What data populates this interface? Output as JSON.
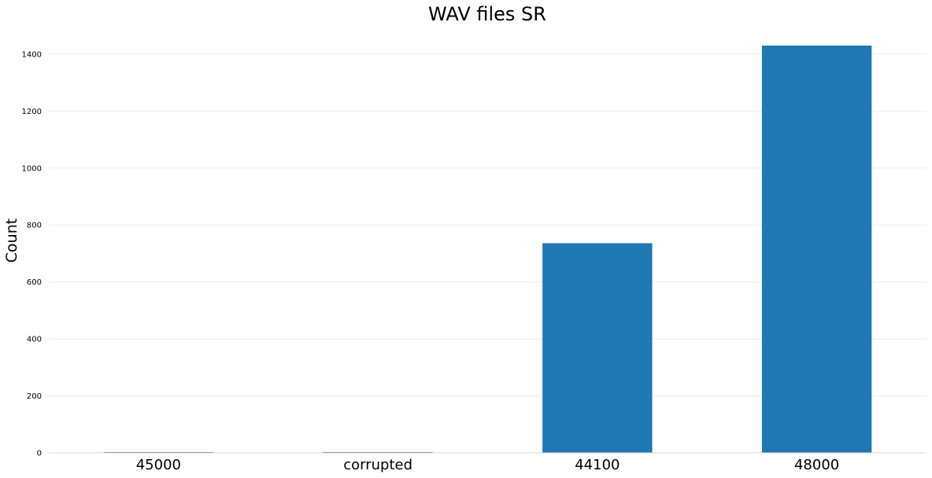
{
  "chart_data": {
    "type": "bar",
    "title": "WAV files SR",
    "xlabel": "",
    "ylabel": "Count",
    "categories": [
      "45000",
      "corrupted",
      "44100",
      "48000"
    ],
    "values": [
      1,
      1,
      736,
      1430
    ],
    "ylim": [
      0,
      1430
    ],
    "yticks": [
      0,
      200,
      400,
      600,
      800,
      1000,
      1200,
      1400
    ],
    "grid": true,
    "legend": "none",
    "bar_color": "#1f77b4"
  }
}
